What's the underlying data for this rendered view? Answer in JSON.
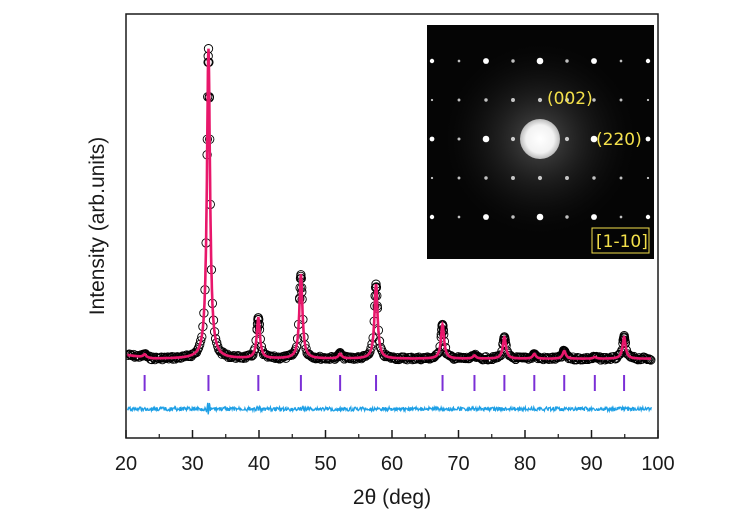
{
  "chart_data": {
    "type": "line",
    "xlabel": "2θ (deg)",
    "ylabel": "Intensity (arb.units)",
    "xlim": [
      20,
      100
    ],
    "x_ticks": [
      20,
      30,
      40,
      50,
      60,
      70,
      80,
      90,
      100
    ],
    "y_ticks_labeled": false,
    "series": [
      {
        "role": "observed",
        "marker": "open-circle",
        "color": "#000000"
      },
      {
        "role": "calculated",
        "color": "#e8176b"
      },
      {
        "role": "difference",
        "color": "#1ea0e6"
      }
    ],
    "peaks": [
      {
        "x": 22.8,
        "height": 0.01
      },
      {
        "x": 32.4,
        "height": 1.0
      },
      {
        "x": 39.9,
        "height": 0.13
      },
      {
        "x": 46.3,
        "height": 0.27
      },
      {
        "x": 52.2,
        "height": 0.015
      },
      {
        "x": 57.6,
        "height": 0.24
      },
      {
        "x": 67.6,
        "height": 0.11
      },
      {
        "x": 72.4,
        "height": 0.01
      },
      {
        "x": 76.9,
        "height": 0.07
      },
      {
        "x": 81.4,
        "height": 0.015
      },
      {
        "x": 85.9,
        "height": 0.025
      },
      {
        "x": 90.5,
        "height": 0.005
      },
      {
        "x": 94.9,
        "height": 0.07
      }
    ],
    "bragg_positions": [
      22.8,
      32.4,
      39.9,
      46.3,
      52.2,
      57.6,
      67.6,
      72.4,
      76.9,
      81.4,
      85.9,
      90.5,
      94.9
    ],
    "bragg_tick_color": "#7b2fd6",
    "inset": {
      "kind": "electron diffraction pattern",
      "labels": {
        "spot_a": "(002)",
        "spot_b": "(220)",
        "zone_axis": "[1-10]"
      },
      "label_color": "#f3e04a"
    }
  }
}
